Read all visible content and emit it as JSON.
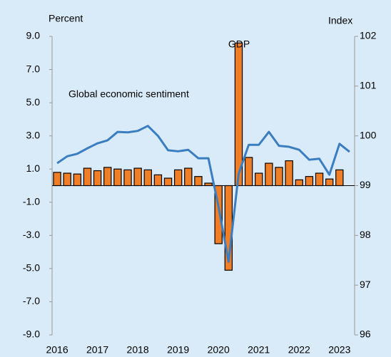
{
  "chart_data": {
    "type": "bar",
    "ylabel": "Percent",
    "y2label": "Index",
    "annotations": [
      "GDP",
      "Global economic sentiment"
    ],
    "categories": [
      "2016",
      null,
      null,
      null,
      "2017",
      null,
      null,
      null,
      "2018",
      null,
      null,
      null,
      "2019",
      null,
      null,
      null,
      "2020",
      null,
      null,
      null,
      "2021",
      null,
      null,
      null,
      "2022",
      null,
      null,
      null,
      "2023",
      null
    ],
    "series": [
      {
        "name": "GDP",
        "type": "bar",
        "axis": "y",
        "color": "#f07e26",
        "values": [
          0.8,
          0.75,
          0.7,
          1.05,
          0.9,
          1.1,
          1.0,
          0.95,
          1.05,
          0.95,
          0.65,
          0.45,
          0.95,
          1.05,
          0.55,
          0.15,
          -3.5,
          -5.1,
          8.6,
          1.7,
          0.75,
          1.35,
          1.1,
          1.5,
          0.35,
          0.55,
          0.75,
          0.4,
          0.95,
          null
        ]
      },
      {
        "name": "Global economic sentiment",
        "type": "line",
        "axis": "y2",
        "color": "#3a7dc0",
        "values": [
          99.45,
          99.59,
          99.64,
          99.75,
          99.85,
          99.91,
          100.08,
          100.07,
          100.1,
          100.2,
          100.0,
          99.71,
          99.69,
          99.72,
          99.55,
          99.55,
          98.58,
          97.47,
          99.24,
          99.82,
          99.82,
          100.08,
          99.8,
          99.78,
          99.72,
          99.52,
          99.54,
          99.22,
          99.84,
          99.68
        ]
      }
    ],
    "ylim": [
      -9,
      9
    ],
    "yticks": [
      {
        "value": -9,
        "label": "-9.0"
      },
      {
        "value": -7,
        "label": "-7.0"
      },
      {
        "value": -5,
        "label": "-5.0"
      },
      {
        "value": -3,
        "label": "-3.0"
      },
      {
        "value": -1,
        "label": "-1.0"
      },
      {
        "value": 1,
        "label": "1.0"
      },
      {
        "value": 3,
        "label": "3.0"
      },
      {
        "value": 5,
        "label": "5.0"
      },
      {
        "value": 7,
        "label": "7.0"
      },
      {
        "value": 9,
        "label": "9.0"
      }
    ],
    "y2lim": [
      96,
      102
    ],
    "y2ticks": [
      96,
      97,
      98,
      99,
      100,
      101,
      102
    ]
  }
}
